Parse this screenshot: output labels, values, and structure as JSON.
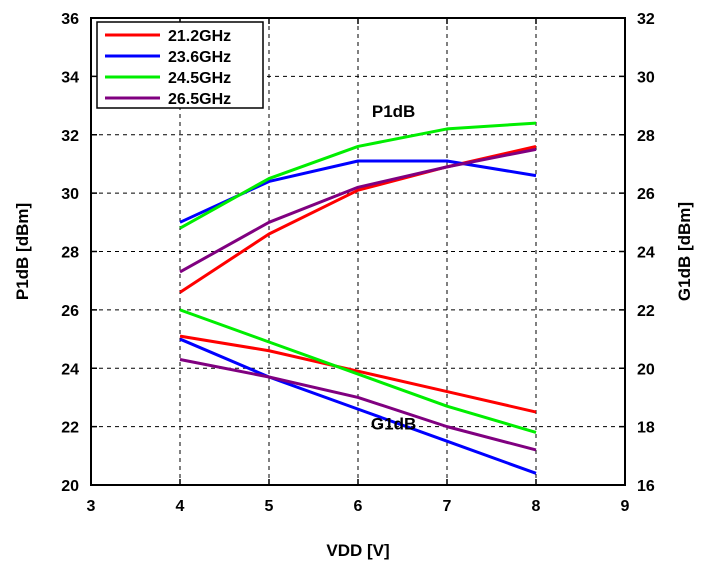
{
  "chart_data": {
    "type": "line",
    "xlabel": "VDD [V]",
    "ylabel_left": "P1dB [dBm]",
    "ylabel_right": "G1dB [dBm]",
    "xlim": [
      3,
      9
    ],
    "ylim_left": [
      20,
      36
    ],
    "ylim_right": [
      16,
      32
    ],
    "x_ticks": [
      "3",
      "4",
      "5",
      "6",
      "7",
      "8",
      "9"
    ],
    "y_left_ticks": [
      "20",
      "22",
      "24",
      "26",
      "28",
      "30",
      "32",
      "34",
      "36"
    ],
    "y_right_ticks": [
      "16",
      "18",
      "20",
      "22",
      "24",
      "26",
      "28",
      "30",
      "32"
    ],
    "grid": true,
    "legend_position": "top-left",
    "annotations": [
      {
        "text": "P1dB",
        "x": 6.4,
        "y": 32.6,
        "axis": "left"
      },
      {
        "text": "G1dB",
        "x": 6.4,
        "y": 21.9,
        "axis": "left"
      }
    ],
    "x": [
      4,
      5,
      6,
      7,
      8
    ],
    "series": [
      {
        "name": "21.2GHz",
        "color": "#ff0000",
        "group": "P1dB",
        "axis": "left",
        "values": [
          26.6,
          28.6,
          30.1,
          30.9,
          31.6
        ]
      },
      {
        "name": "23.6GHz",
        "color": "#0000ff",
        "group": "P1dB",
        "axis": "left",
        "values": [
          29.0,
          30.4,
          31.1,
          31.1,
          30.6
        ]
      },
      {
        "name": "24.5GHz",
        "color": "#00ee00",
        "group": "P1dB",
        "axis": "left",
        "values": [
          28.8,
          30.5,
          31.6,
          32.2,
          32.4
        ]
      },
      {
        "name": "26.5GHz",
        "color": "#800080",
        "group": "P1dB",
        "axis": "left",
        "values": [
          27.3,
          29.0,
          30.2,
          30.9,
          31.5
        ]
      },
      {
        "name": "21.2GHz",
        "color": "#ff0000",
        "group": "G1dB",
        "axis": "left",
        "values": [
          25.1,
          24.6,
          23.9,
          23.2,
          22.5
        ]
      },
      {
        "name": "23.6GHz",
        "color": "#0000ff",
        "group": "G1dB",
        "axis": "left",
        "values": [
          25.0,
          23.7,
          22.6,
          21.5,
          20.4
        ]
      },
      {
        "name": "24.5GHz",
        "color": "#00ee00",
        "group": "G1dB",
        "axis": "left",
        "values": [
          26.0,
          24.9,
          23.8,
          22.7,
          21.8
        ]
      },
      {
        "name": "26.5GHz",
        "color": "#800080",
        "group": "G1dB",
        "axis": "left",
        "values": [
          24.3,
          23.7,
          23.0,
          22.0,
          21.2
        ]
      }
    ],
    "legend": [
      {
        "label": "21.2GHz",
        "color": "#ff0000"
      },
      {
        "label": "23.6GHz",
        "color": "#0000ff"
      },
      {
        "label": "24.5GHz",
        "color": "#00ee00"
      },
      {
        "label": "26.5GHz",
        "color": "#800080"
      }
    ]
  }
}
